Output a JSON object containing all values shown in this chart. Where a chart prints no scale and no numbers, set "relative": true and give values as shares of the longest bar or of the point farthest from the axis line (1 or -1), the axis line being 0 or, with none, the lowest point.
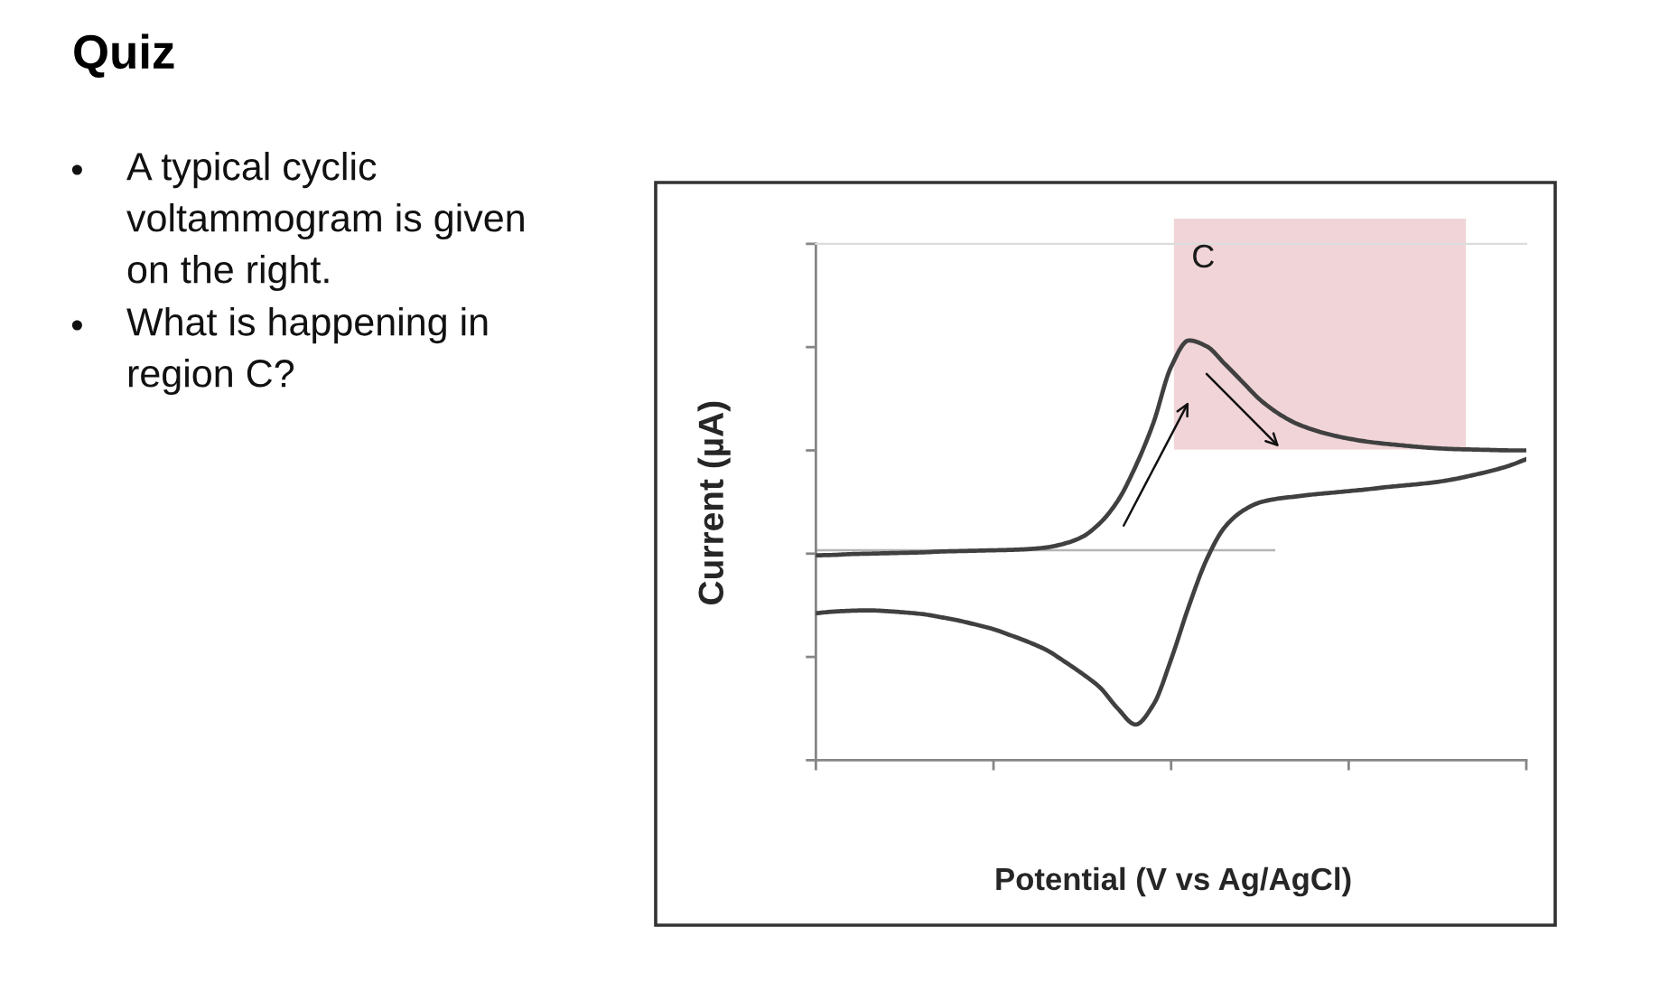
{
  "chart_data": {
    "type": "line",
    "title": "Quiz",
    "xlabel": "Potential (V vs Ag/AgCl)",
    "ylabel": "Current (µA)",
    "relative": true,
    "categories": [
      null,
      null,
      null,
      null,
      null,
      null,
      null,
      null,
      null,
      null,
      null,
      null,
      null,
      null,
      null,
      null,
      null,
      null,
      null,
      null,
      null,
      null,
      null,
      null,
      null,
      null,
      null,
      null,
      null,
      null,
      null,
      null,
      null,
      null,
      null,
      null,
      null,
      null,
      null,
      null,
      null
    ],
    "series": [
      {
        "color": "#404040",
        "values": [
          0.488,
          0.489,
          0.491,
          0.492,
          0.493,
          0.494,
          0.495,
          0.497,
          0.498,
          0.499,
          0.5,
          0.501,
          0.503,
          0.507,
          0.516,
          0.532,
          0.565,
          0.618,
          0.7,
          0.803,
          0.937,
          1.0,
          0.986,
          0.945,
          0.902,
          0.859,
          0.827,
          0.803,
          0.787,
          0.775,
          0.766,
          0.759,
          0.754,
          0.75,
          0.746,
          0.743,
          0.741,
          0.74,
          0.739,
          0.738,
          0.738
        ]
      },
      {
        "color": "#404040",
        "values": [
          0.35,
          0.354,
          0.356,
          0.357,
          0.355,
          0.352,
          0.348,
          0.341,
          0.333,
          0.323,
          0.312,
          0.297,
          0.281,
          0.262,
          0.235,
          0.206,
          0.173,
          0.123,
          0.085,
          0.132,
          0.24,
          0.367,
          0.478,
          0.554,
          0.593,
          0.614,
          0.623,
          0.628,
          0.633,
          0.637,
          0.641,
          0.645,
          0.65,
          0.654,
          0.658,
          0.663,
          0.67,
          0.679,
          0.689,
          0.701,
          0.717
        ]
      }
    ],
    "bands": [
      {
        "axis": "y",
        "from": 0.74,
        "to": 1.29,
        "label": "C",
        "color": "#f0d4d7"
      }
    ],
    "ref_lines": [
      {
        "axis": "y",
        "value": 0.5,
        "color": "#b4b4b4"
      }
    ],
    "annotations": [
      "A typical cyclic voltammogram is given on the right.",
      "What is happening in region C?"
    ]
  }
}
